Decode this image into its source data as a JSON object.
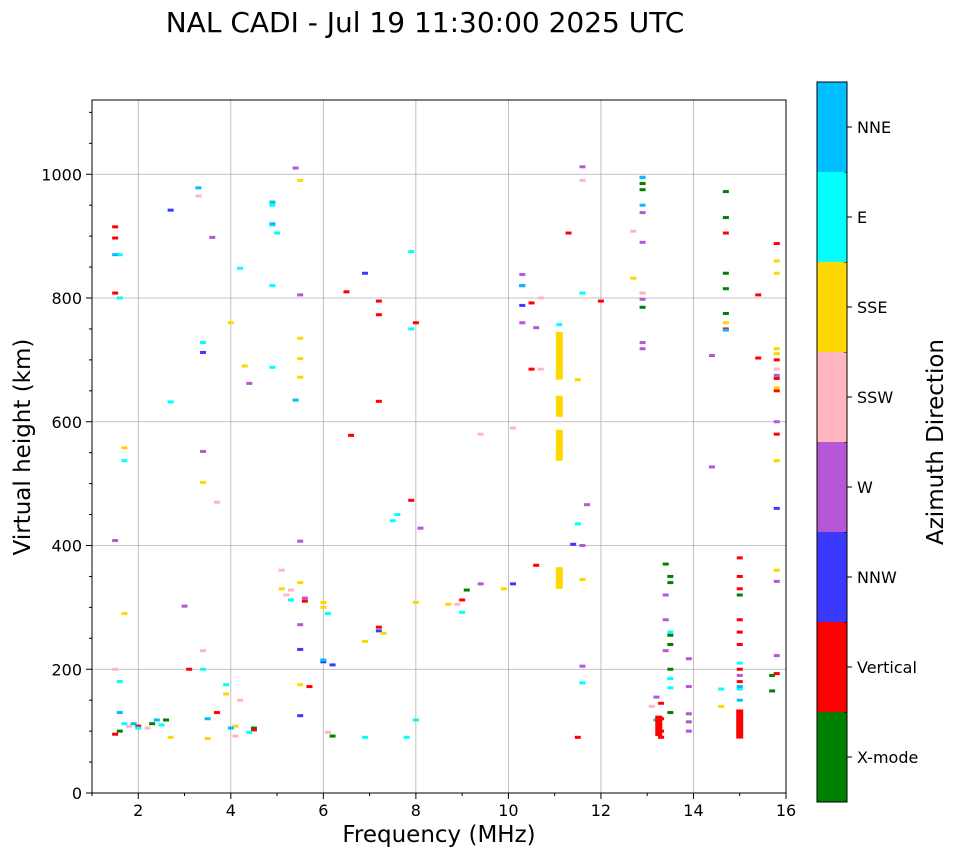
{
  "chart_data": {
    "type": "scatter",
    "title": "NAL CADI - Jul 19 11:30:00 2025 UTC",
    "xlabel": "Frequency (MHz)",
    "ylabel": "Virtual height (km)",
    "xlim": [
      1,
      16
    ],
    "ylim": [
      0,
      1120
    ],
    "xticks": [
      2,
      4,
      6,
      8,
      10,
      12,
      14,
      16
    ],
    "yticks": [
      0,
      200,
      400,
      600,
      800,
      1000
    ],
    "grid": true,
    "colorbar": {
      "title": "Azimuth Direction",
      "categories": [
        "X-mode",
        "Vertical",
        "NNW",
        "W",
        "SSW",
        "SSE",
        "E",
        "NNE"
      ],
      "colors": {
        "X-mode": "#008000",
        "Vertical": "#ff0000",
        "NNW": "#3a3aff",
        "W": "#b557d6",
        "SSW": "#ffb6c1",
        "SSE": "#ffd700",
        "E": "#00ffff",
        "NNE": "#00bfff"
      }
    },
    "series": [
      {
        "name": "X-mode",
        "points": [
          [
            1.6,
            100
          ],
          [
            2.3,
            112
          ],
          [
            2.6,
            118
          ],
          [
            4.5,
            105
          ],
          [
            6.2,
            92
          ],
          [
            9.1,
            328
          ],
          [
            12.9,
            985
          ],
          [
            12.9,
            975
          ],
          [
            12.9,
            785
          ],
          [
            13.5,
            350
          ],
          [
            13.5,
            340
          ],
          [
            13.5,
            255
          ],
          [
            13.5,
            240
          ],
          [
            13.5,
            200
          ],
          [
            13.5,
            130
          ],
          [
            13.4,
            370
          ],
          [
            14.7,
            972
          ],
          [
            14.7,
            930
          ],
          [
            14.7,
            840
          ],
          [
            14.7,
            815
          ],
          [
            14.7,
            775
          ],
          [
            15.0,
            320
          ],
          [
            15.0,
            130
          ],
          [
            15.7,
            165
          ],
          [
            15.7,
            190
          ]
        ]
      },
      {
        "name": "Vertical",
        "points": [
          [
            1.5,
            915
          ],
          [
            1.5,
            897
          ],
          [
            1.5,
            808
          ],
          [
            1.5,
            95
          ],
          [
            2.0,
            108
          ],
          [
            3.1,
            200
          ],
          [
            3.7,
            130
          ],
          [
            4.5,
            102
          ],
          [
            5.6,
            310
          ],
          [
            5.7,
            172
          ],
          [
            6.5,
            810
          ],
          [
            6.6,
            578
          ],
          [
            7.2,
            795
          ],
          [
            7.2,
            773
          ],
          [
            7.2,
            633
          ],
          [
            7.2,
            268
          ],
          [
            7.9,
            473
          ],
          [
            8.0,
            760
          ],
          [
            9.0,
            312
          ],
          [
            10.5,
            792
          ],
          [
            10.5,
            685
          ],
          [
            10.6,
            368
          ],
          [
            11.3,
            905
          ],
          [
            11.5,
            90
          ],
          [
            12.0,
            795
          ],
          [
            13.3,
            145
          ],
          [
            13.3,
            120
          ],
          [
            13.3,
            100
          ],
          [
            13.3,
            90
          ],
          [
            14.7,
            905
          ],
          [
            14.7,
            750
          ],
          [
            15.0,
            380
          ],
          [
            15.0,
            350
          ],
          [
            15.0,
            330
          ],
          [
            15.0,
            280
          ],
          [
            15.0,
            260
          ],
          [
            15.0,
            240
          ],
          [
            15.0,
            200
          ],
          [
            15.0,
            180
          ],
          [
            15.0,
            120
          ],
          [
            15.0,
            95
          ],
          [
            15.4,
            805
          ],
          [
            15.4,
            703
          ],
          [
            15.8,
            888
          ],
          [
            15.8,
            700
          ],
          [
            15.8,
            670
          ],
          [
            15.8,
            650
          ],
          [
            15.8,
            580
          ],
          [
            15.8,
            193
          ]
        ]
      },
      {
        "name": "NNW",
        "points": [
          [
            2.7,
            942
          ],
          [
            3.4,
            712
          ],
          [
            5.5,
            232
          ],
          [
            5.5,
            125
          ],
          [
            6.0,
            212
          ],
          [
            6.2,
            207
          ],
          [
            6.9,
            840
          ],
          [
            7.2,
            262
          ],
          [
            10.1,
            338
          ],
          [
            10.3,
            820
          ],
          [
            10.3,
            788
          ],
          [
            11.4,
            402
          ],
          [
            15.8,
            460
          ]
        ]
      },
      {
        "name": "W",
        "points": [
          [
            1.5,
            408
          ],
          [
            3.0,
            302
          ],
          [
            3.4,
            552
          ],
          [
            3.6,
            898
          ],
          [
            4.4,
            662
          ],
          [
            5.4,
            1010
          ],
          [
            5.5,
            805
          ],
          [
            5.5,
            407
          ],
          [
            5.5,
            272
          ],
          [
            5.6,
            315
          ],
          [
            8.1,
            428
          ],
          [
            9.4,
            338
          ],
          [
            10.3,
            838
          ],
          [
            10.3,
            760
          ],
          [
            10.6,
            752
          ],
          [
            11.6,
            1012
          ],
          [
            11.6,
            400
          ],
          [
            11.6,
            205
          ],
          [
            11.7,
            466
          ],
          [
            12.9,
            995
          ],
          [
            12.9,
            938
          ],
          [
            12.9,
            890
          ],
          [
            12.9,
            808
          ],
          [
            12.9,
            798
          ],
          [
            12.9,
            728
          ],
          [
            12.9,
            718
          ],
          [
            13.2,
            155
          ],
          [
            13.4,
            320
          ],
          [
            13.4,
            280
          ],
          [
            13.4,
            230
          ],
          [
            13.9,
            217
          ],
          [
            13.9,
            172
          ],
          [
            13.9,
            128
          ],
          [
            13.9,
            115
          ],
          [
            13.9,
            100
          ],
          [
            14.4,
            707
          ],
          [
            14.4,
            527
          ],
          [
            15.0,
            190
          ],
          [
            15.8,
            675
          ],
          [
            15.8,
            600
          ],
          [
            15.8,
            342
          ],
          [
            15.8,
            222
          ]
        ]
      },
      {
        "name": "SSW",
        "points": [
          [
            1.5,
            200
          ],
          [
            1.8,
            108
          ],
          [
            2.2,
            105
          ],
          [
            3.3,
            965
          ],
          [
            3.4,
            230
          ],
          [
            3.7,
            470
          ],
          [
            4.1,
            92
          ],
          [
            4.2,
            150
          ],
          [
            5.1,
            360
          ],
          [
            5.3,
            328
          ],
          [
            5.2,
            320
          ],
          [
            6.1,
            98
          ],
          [
            8.9,
            305
          ],
          [
            9.4,
            580
          ],
          [
            10.1,
            590
          ],
          [
            10.7,
            800
          ],
          [
            10.7,
            685
          ],
          [
            11.6,
            990
          ],
          [
            12.7,
            908
          ],
          [
            12.9,
            808
          ],
          [
            13.1,
            140
          ],
          [
            15.8,
            685
          ]
        ]
      },
      {
        "name": "SSE",
        "points": [
          [
            1.7,
            558
          ],
          [
            1.7,
            290
          ],
          [
            2.7,
            90
          ],
          [
            3.4,
            502
          ],
          [
            3.5,
            88
          ],
          [
            3.9,
            160
          ],
          [
            4.0,
            760
          ],
          [
            4.1,
            108
          ],
          [
            4.3,
            690
          ],
          [
            5.1,
            330
          ],
          [
            5.5,
            990
          ],
          [
            5.5,
            735
          ],
          [
            5.5,
            702
          ],
          [
            5.5,
            672
          ],
          [
            5.5,
            340
          ],
          [
            5.5,
            175
          ],
          [
            6.0,
            300
          ],
          [
            6.0,
            308
          ],
          [
            6.9,
            245
          ],
          [
            7.3,
            258
          ],
          [
            8.0,
            308
          ],
          [
            8.7,
            305
          ],
          [
            9.9,
            330
          ],
          [
            11.1,
            740
          ],
          [
            11.1,
            720
          ],
          [
            11.1,
            700
          ],
          [
            11.1,
            685
          ],
          [
            11.1,
            625
          ],
          [
            11.1,
            615
          ],
          [
            11.1,
            570
          ],
          [
            11.1,
            548
          ],
          [
            11.1,
            345
          ],
          [
            11.5,
            668
          ],
          [
            11.6,
            345
          ],
          [
            12.7,
            832
          ],
          [
            14.6,
            140
          ],
          [
            14.7,
            760
          ],
          [
            15.8,
            860
          ],
          [
            15.8,
            840
          ],
          [
            15.8,
            718
          ],
          [
            15.8,
            710
          ],
          [
            15.8,
            655
          ],
          [
            15.8,
            537
          ],
          [
            15.8,
            360
          ]
        ]
      },
      {
        "name": "E",
        "points": [
          [
            1.6,
            870
          ],
          [
            1.6,
            800
          ],
          [
            1.6,
            180
          ],
          [
            1.7,
            537
          ],
          [
            1.7,
            112
          ],
          [
            2.0,
            105
          ],
          [
            2.5,
            110
          ],
          [
            2.7,
            632
          ],
          [
            3.4,
            728
          ],
          [
            3.4,
            200
          ],
          [
            3.9,
            175
          ],
          [
            4.2,
            848
          ],
          [
            4.4,
            98
          ],
          [
            4.9,
            950
          ],
          [
            4.9,
            918
          ],
          [
            4.9,
            820
          ],
          [
            4.9,
            688
          ],
          [
            5.0,
            905
          ],
          [
            5.3,
            312
          ],
          [
            6.1,
            290
          ],
          [
            6.9,
            90
          ],
          [
            7.6,
            450
          ],
          [
            7.5,
            440
          ],
          [
            7.8,
            90
          ],
          [
            7.9,
            875
          ],
          [
            7.9,
            750
          ],
          [
            8.0,
            118
          ],
          [
            9.0,
            292
          ],
          [
            11.1,
            757
          ],
          [
            11.1,
            730
          ],
          [
            11.5,
            435
          ],
          [
            11.6,
            808
          ],
          [
            11.6,
            178
          ],
          [
            13.5,
            260
          ],
          [
            13.5,
            185
          ],
          [
            13.5,
            170
          ],
          [
            14.6,
            168
          ],
          [
            15.0,
            210
          ],
          [
            15.0,
            168
          ]
        ]
      },
      {
        "name": "NNE",
        "points": [
          [
            1.5,
            870
          ],
          [
            1.6,
            130
          ],
          [
            1.9,
            112
          ],
          [
            2.4,
            118
          ],
          [
            3.3,
            978
          ],
          [
            3.5,
            120
          ],
          [
            4.0,
            105
          ],
          [
            4.9,
            955
          ],
          [
            4.9,
            920
          ],
          [
            5.4,
            635
          ],
          [
            6.0,
            215
          ],
          [
            10.3,
            820
          ],
          [
            12.9,
            995
          ],
          [
            12.9,
            950
          ],
          [
            13.2,
            118
          ],
          [
            14.7,
            748
          ],
          [
            15.0,
            172
          ],
          [
            15.0,
            150
          ]
        ]
      }
    ],
    "bars": [
      {
        "series": "SSE",
        "x": 11.1,
        "y0": 537,
        "y1": 587
      },
      {
        "series": "SSE",
        "x": 11.1,
        "y0": 608,
        "y1": 642
      },
      {
        "series": "SSE",
        "x": 11.1,
        "y0": 668,
        "y1": 745
      },
      {
        "series": "SSE",
        "x": 11.1,
        "y0": 330,
        "y1": 365
      },
      {
        "series": "Vertical",
        "x": 15.0,
        "y0": 88,
        "y1": 135
      },
      {
        "series": "Vertical",
        "x": 13.25,
        "y0": 92,
        "y1": 125
      }
    ]
  }
}
